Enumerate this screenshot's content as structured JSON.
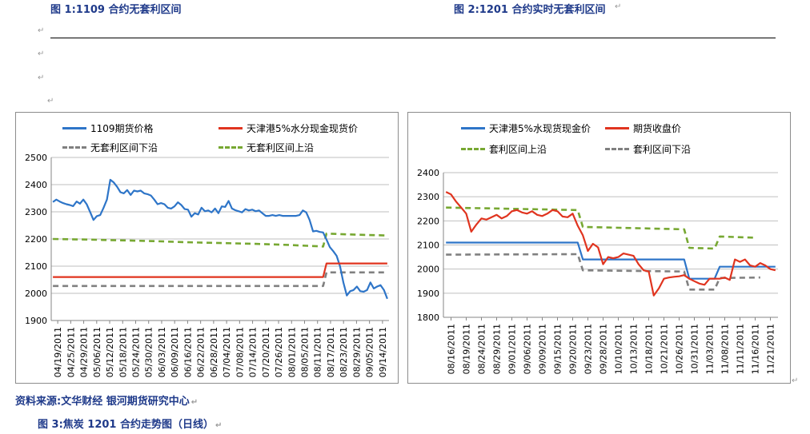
{
  "captions": {
    "fig1": "图 1:1109 合约无套利区间",
    "fig2": "图 2:1201 合约实时无套利区间",
    "source": "资料来源:文华财经    银河期货研究中心",
    "fig3": "图 3:焦炭 1201 合约走势图（日线）"
  },
  "marks": {
    "return": "↵"
  },
  "colors": {
    "blue": "#2e75c8",
    "red": "#e0341f",
    "gray_dash": "#808080",
    "green_dash": "#77a832",
    "grid": "#bfbfbf",
    "frame": "#8c8c8c"
  },
  "chart_data": [
    {
      "type": "line",
      "ylim": [
        1900,
        2500
      ],
      "yticks": [
        "1900",
        "2000",
        "2100",
        "2200",
        "2300",
        "2400",
        "2500"
      ],
      "x_tick_labels": [
        "04/19/2011",
        "04/25/2011",
        "04/29/2011",
        "05/06/2011",
        "05/12/2011",
        "05/18/2011",
        "05/24/2011",
        "05/30/2011",
        "06/03/2011",
        "06/09/2011",
        "06/16/2011",
        "06/22/2011",
        "06/28/2011",
        "07/04/2011",
        "07/08/2011",
        "07/14/2011",
        "07/20/2011",
        "07/26/2011",
        "08/01/2011",
        "08/05/2011",
        "08/11/2011",
        "08/17/2011",
        "08/23/2011",
        "08/29/2011",
        "09/05/2011",
        "09/14/2011"
      ],
      "n_points": 100,
      "series": [
        {
          "name": "1109期货价格",
          "color": "#2e75c8",
          "dash": false,
          "x": [
            0,
            1,
            2,
            3,
            4,
            5,
            6,
            7,
            8,
            9,
            10,
            11,
            12,
            13,
            14,
            15,
            16,
            17,
            18,
            19,
            20,
            21,
            22,
            23,
            24,
            25,
            26,
            27,
            28,
            29,
            30,
            31,
            32,
            33,
            34,
            35,
            36,
            37,
            38,
            39,
            40,
            41,
            42,
            43,
            44,
            45,
            46,
            47,
            48,
            49,
            50,
            51,
            52,
            53,
            54,
            55,
            56,
            57,
            58,
            59,
            60,
            61,
            62,
            63,
            64,
            65,
            66,
            67,
            68,
            69,
            70,
            71,
            72,
            73,
            74,
            75,
            76,
            77,
            78,
            79,
            80,
            81,
            82,
            83,
            84,
            85,
            86,
            87,
            88,
            89,
            90,
            91,
            92,
            93,
            94,
            95,
            96,
            97,
            98,
            99
          ],
          "values": [
            2336,
            2345,
            2338,
            2332,
            2328,
            2325,
            2321,
            2338,
            2330,
            2345,
            2328,
            2300,
            2270,
            2284,
            2288,
            2315,
            2345,
            2418,
            2408,
            2392,
            2372,
            2368,
            2380,
            2362,
            2378,
            2375,
            2378,
            2368,
            2365,
            2360,
            2345,
            2328,
            2332,
            2328,
            2315,
            2312,
            2320,
            2335,
            2325,
            2310,
            2308,
            2282,
            2295,
            2290,
            2315,
            2302,
            2305,
            2298,
            2312,
            2295,
            2320,
            2318,
            2340,
            2312,
            2306,
            2302,
            2298,
            2310,
            2305,
            2308,
            2302,
            2305,
            2295,
            2285,
            2285,
            2288,
            2285,
            2288,
            2285,
            2285,
            2285,
            2285,
            2285,
            2288,
            2305,
            2298,
            2270,
            2228,
            2230,
            2226,
            2224,
            2198,
            2170,
            2155,
            2138,
            2100,
            2040,
            1992,
            2008,
            2012,
            2025,
            2008,
            2006,
            2012,
            2040,
            2018,
            2025,
            2030,
            2012,
            1980
          ]
        },
        {
          "name": "天津港5%水分现金现货价",
          "color": "#e0341f",
          "dash": false,
          "x": [
            0,
            80,
            81,
            99
          ],
          "values": [
            2060,
            2060,
            2110,
            2110
          ]
        },
        {
          "name": "无套利区间下沿",
          "color": "#808080",
          "dash": true,
          "x": [
            0,
            80,
            81,
            99
          ],
          "values": [
            2027,
            2027,
            2077,
            2077
          ]
        },
        {
          "name": "无套利区间上沿",
          "color": "#77a832",
          "dash": true,
          "x": [
            0,
            10,
            20,
            30,
            40,
            50,
            60,
            70,
            79,
            80,
            81,
            85,
            90,
            95,
            99
          ],
          "values": [
            2200,
            2198,
            2195,
            2192,
            2188,
            2185,
            2182,
            2178,
            2173,
            2172,
            2220,
            2218,
            2216,
            2214,
            2213
          ]
        }
      ],
      "legend": [
        {
          "name": "1109期货价格",
          "color": "#2e75c8",
          "dash": false
        },
        {
          "name": "天津港5%水分现金现货价",
          "color": "#e0341f",
          "dash": false
        },
        {
          "name": "无套利区间下沿",
          "color": "#808080",
          "dash": true
        },
        {
          "name": "无套利区间上沿",
          "color": "#77a832",
          "dash": true
        }
      ]
    },
    {
      "type": "line",
      "ylim": [
        1800,
        2400
      ],
      "yticks": [
        "1800",
        "1900",
        "2000",
        "2100",
        "2200",
        "2300",
        "2400"
      ],
      "x_tick_labels": [
        "08/16/2011",
        "08/19/2011",
        "08/24/2011",
        "08/29/2011",
        "09/01/2011",
        "09/06/2011",
        "09/09/2011",
        "09/15/2011",
        "09/20/2011",
        "09/23/2011",
        "09/28/2011",
        "10/10/2011",
        "10/13/2011",
        "10/18/2011",
        "10/21/2011",
        "10/26/2011",
        "10/31/2011",
        "11/03/2011",
        "11/08/2011",
        "11/11/2011",
        "11/16/2011",
        "11/21/2011"
      ],
      "n_points": 66,
      "series": [
        {
          "name": "天津港5%水现货现金价",
          "color": "#2e75c8",
          "dash": false,
          "x": [
            0,
            26,
            27,
            47,
            48,
            53,
            54,
            65
          ],
          "values": [
            2110,
            2110,
            2040,
            2040,
            1960,
            1960,
            2010,
            2010
          ]
        },
        {
          "name": "期货收盘价",
          "color": "#e0341f",
          "dash": false,
          "x": [
            0,
            1,
            2,
            3,
            4,
            5,
            6,
            7,
            8,
            9,
            10,
            11,
            12,
            13,
            14,
            15,
            16,
            17,
            18,
            19,
            20,
            21,
            22,
            23,
            24,
            25,
            26,
            27,
            28,
            29,
            30,
            31,
            32,
            33,
            34,
            35,
            36,
            37,
            38,
            39,
            40,
            41,
            42,
            43,
            44,
            45,
            46,
            47,
            48,
            49,
            50,
            51,
            52,
            53,
            54,
            55,
            56,
            57,
            58,
            59,
            60,
            61,
            62,
            63,
            64,
            65
          ],
          "values": [
            2320,
            2310,
            2280,
            2255,
            2230,
            2155,
            2185,
            2210,
            2205,
            2215,
            2225,
            2210,
            2220,
            2240,
            2245,
            2235,
            2230,
            2240,
            2225,
            2220,
            2230,
            2245,
            2240,
            2218,
            2215,
            2230,
            2180,
            2140,
            2075,
            2105,
            2090,
            2020,
            2050,
            2045,
            2050,
            2065,
            2060,
            2055,
            2020,
            1995,
            1990,
            1890,
            1920,
            1960,
            1965,
            1968,
            1970,
            1975,
            1960,
            1950,
            1940,
            1935,
            1960,
            1960,
            1960,
            1965,
            1955,
            2040,
            2030,
            2040,
            2015,
            2010,
            2025,
            2015,
            2000,
            1995
          ]
        },
        {
          "name": "套利区间上沿",
          "color": "#77a832",
          "dash": true,
          "x": [
            0,
            26,
            27,
            47,
            48,
            53,
            54,
            61
          ],
          "values": [
            2255,
            2245,
            2175,
            2165,
            2088,
            2085,
            2135,
            2130
          ]
        },
        {
          "name": "套利区间下沿",
          "color": "#808080",
          "dash": true,
          "x": [
            0,
            26,
            27,
            47,
            48,
            53,
            54,
            62
          ],
          "values": [
            2060,
            2062,
            1995,
            1990,
            1915,
            1915,
            1963,
            1965
          ]
        }
      ],
      "legend": [
        {
          "name": "天津港5%水现货现金价",
          "color": "#2e75c8",
          "dash": false
        },
        {
          "name": "期货收盘价",
          "color": "#e0341f",
          "dash": false
        },
        {
          "name": "套利区间上沿",
          "color": "#77a832",
          "dash": true
        },
        {
          "name": "套利区间下沿",
          "color": "#808080",
          "dash": true
        }
      ]
    }
  ]
}
